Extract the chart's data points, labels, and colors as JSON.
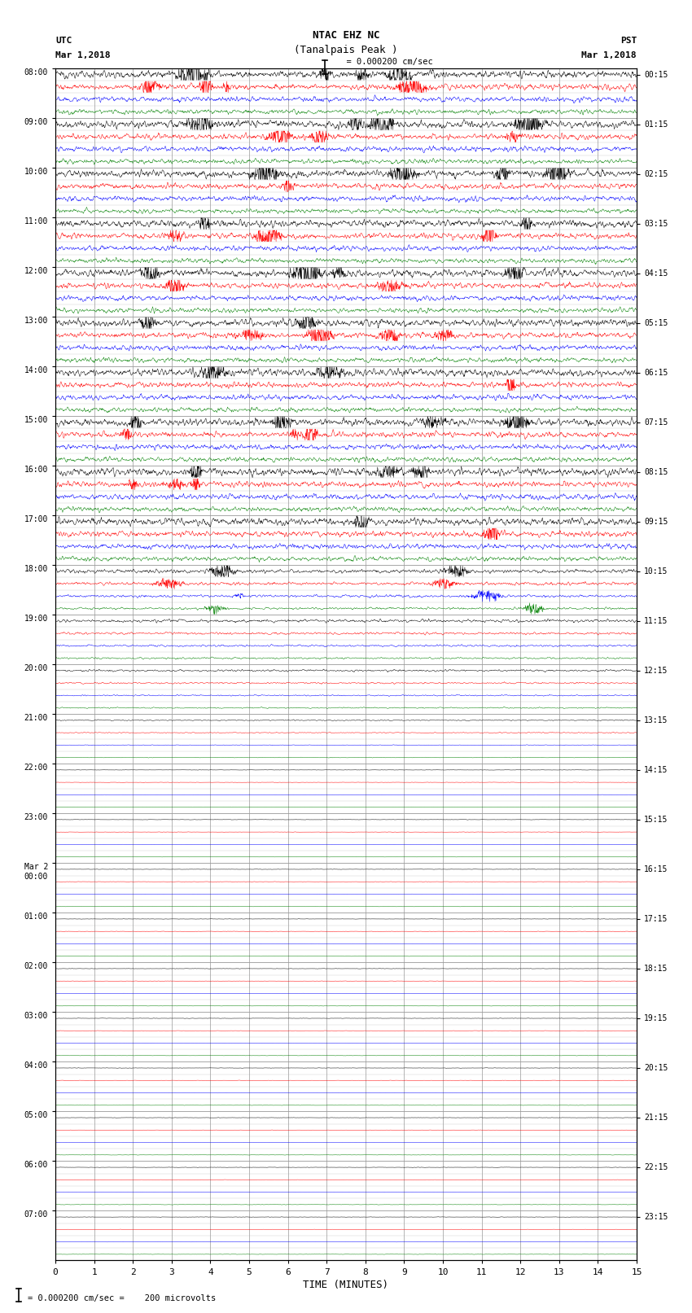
{
  "title_line1": "NTAC EHZ NC",
  "title_line2": "(Tanalpais Peak )",
  "scale_label": "= 0.000200 cm/sec",
  "left_header": "UTC",
  "right_header": "PST",
  "left_date": "Mar 1,2018",
  "right_date": "Mar 1,2018",
  "bottom_xlabel": "TIME (MINUTES)",
  "bottom_note": "= 0.000200 cm/sec =    200 microvolts",
  "xmin": 0,
  "xmax": 15,
  "num_hours": 24,
  "traces_per_hour": 4,
  "colors_cycle": [
    "black",
    "red",
    "blue",
    "green"
  ],
  "utc_hour_labels": [
    "08:00",
    "09:00",
    "10:00",
    "11:00",
    "12:00",
    "13:00",
    "14:00",
    "15:00",
    "16:00",
    "17:00",
    "18:00",
    "19:00",
    "20:00",
    "21:00",
    "22:00",
    "23:00",
    "Mar 2\n00:00",
    "01:00",
    "02:00",
    "03:00",
    "04:00",
    "05:00",
    "06:00",
    "07:00"
  ],
  "pst_hour_labels": [
    "00:15",
    "01:15",
    "02:15",
    "03:15",
    "04:15",
    "05:15",
    "06:15",
    "07:15",
    "08:15",
    "09:15",
    "10:15",
    "11:15",
    "12:15",
    "13:15",
    "14:15",
    "15:15",
    "16:15",
    "17:15",
    "18:15",
    "19:15",
    "20:15",
    "21:15",
    "22:15",
    "23:15"
  ],
  "active_hours": 10,
  "partial_active_hours": 4,
  "background_color": "white",
  "grid_color": "#999999",
  "fig_width": 8.5,
  "fig_height": 16.13
}
